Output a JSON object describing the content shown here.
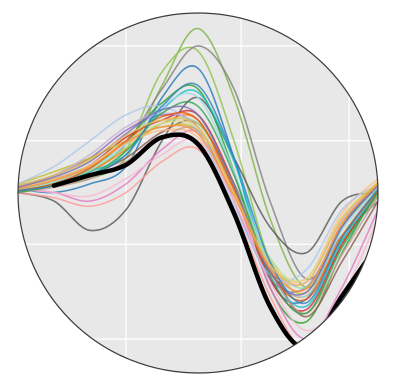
{
  "chart_data": {
    "type": "line",
    "style": {
      "background": "#e8e8e8",
      "grid_color": "#ffffff",
      "rim_color": "#3a3a3a",
      "mean_color": "#000000"
    },
    "grid": true,
    "legend": "none",
    "xlim": [
      0,
      1
    ],
    "ylim": [
      -1,
      1
    ],
    "x": [
      0.0,
      0.1,
      0.2,
      0.3,
      0.4,
      0.5,
      0.6,
      0.7,
      0.8,
      0.9,
      1.0
    ],
    "series": [
      {
        "color": "#7cb342",
        "values": [
          0.03,
          0.05,
          0.08,
          0.2,
          0.62,
          0.95,
          0.55,
          -0.15,
          -0.55,
          -0.28,
          -0.02
        ]
      },
      {
        "color": "#8bc34a",
        "values": [
          0.0,
          0.04,
          0.1,
          0.25,
          0.7,
          0.82,
          0.3,
          -0.4,
          -0.7,
          -0.3,
          0.0
        ]
      },
      {
        "color": "#7f7f7f",
        "values": [
          0.02,
          0.06,
          0.12,
          0.28,
          0.6,
          0.85,
          0.6,
          -0.05,
          -0.5,
          -0.25,
          -0.05
        ]
      },
      {
        "color": "#555555",
        "values": [
          0.0,
          -0.05,
          -0.22,
          -0.1,
          0.3,
          0.55,
          0.2,
          -0.2,
          -0.35,
          -0.05,
          0.0
        ]
      },
      {
        "color": "#1f77b4",
        "values": [
          0.02,
          0.0,
          0.05,
          0.15,
          0.55,
          0.72,
          0.2,
          -0.5,
          -0.62,
          -0.2,
          0.05
        ]
      },
      {
        "color": "#2ca02c",
        "values": [
          0.01,
          0.06,
          0.14,
          0.3,
          0.52,
          0.6,
          0.12,
          -0.55,
          -0.75,
          -0.35,
          0.02
        ]
      },
      {
        "color": "#d62728",
        "values": [
          0.03,
          0.08,
          0.16,
          0.32,
          0.42,
          0.45,
          0.05,
          -0.5,
          -0.68,
          -0.3,
          0.0
        ]
      },
      {
        "color": "#ff7f0e",
        "values": [
          0.02,
          0.05,
          0.12,
          0.25,
          0.4,
          0.42,
          0.0,
          -0.45,
          -0.6,
          -0.25,
          0.02
        ]
      },
      {
        "color": "#9467bd",
        "values": [
          0.04,
          0.1,
          0.2,
          0.36,
          0.45,
          0.38,
          -0.05,
          -0.5,
          -0.55,
          -0.2,
          0.04
        ]
      },
      {
        "color": "#8c564b",
        "values": [
          0.0,
          0.04,
          0.1,
          0.2,
          0.35,
          0.4,
          0.05,
          -0.42,
          -0.72,
          -0.4,
          -0.05
        ]
      },
      {
        "color": "#e377c2",
        "values": [
          0.02,
          0.0,
          -0.05,
          0.05,
          0.25,
          0.35,
          0.0,
          -0.55,
          -0.85,
          -0.55,
          -0.1
        ]
      },
      {
        "color": "#bcbd22",
        "values": [
          0.05,
          0.12,
          0.2,
          0.3,
          0.38,
          0.36,
          0.02,
          -0.4,
          -0.58,
          -0.18,
          0.06
        ]
      },
      {
        "color": "#17becf",
        "values": [
          0.0,
          0.05,
          0.12,
          0.22,
          0.48,
          0.58,
          0.18,
          -0.45,
          -0.66,
          -0.28,
          0.0
        ]
      },
      {
        "color": "#ffbb78",
        "values": [
          0.03,
          0.07,
          0.15,
          0.28,
          0.36,
          0.32,
          -0.02,
          -0.42,
          -0.5,
          -0.12,
          0.08
        ]
      },
      {
        "color": "#ff9896",
        "values": [
          0.0,
          -0.03,
          -0.08,
          0.0,
          0.18,
          0.25,
          -0.1,
          -0.6,
          -0.92,
          -0.7,
          -0.2
        ]
      },
      {
        "color": "#f7b6d2",
        "values": [
          0.02,
          0.0,
          -0.02,
          0.08,
          0.22,
          0.3,
          -0.05,
          -0.52,
          -0.8,
          -0.6,
          -0.15
        ]
      },
      {
        "color": "#aec7e8",
        "values": [
          0.05,
          0.15,
          0.3,
          0.45,
          0.5,
          0.35,
          -0.08,
          -0.48,
          -0.45,
          -0.1,
          0.05
        ]
      },
      {
        "color": "#98df8a",
        "values": [
          0.01,
          0.06,
          0.13,
          0.26,
          0.4,
          0.4,
          0.04,
          -0.38,
          -0.55,
          -0.2,
          0.03
        ]
      },
      {
        "color": "#c5b0d5",
        "values": [
          0.04,
          0.1,
          0.22,
          0.38,
          0.46,
          0.38,
          0.0,
          -0.44,
          -0.52,
          -0.16,
          0.04
        ]
      },
      {
        "color": "#c49c94",
        "values": [
          0.0,
          0.03,
          0.08,
          0.18,
          0.32,
          0.36,
          0.02,
          -0.45,
          -0.7,
          -0.36,
          -0.02
        ]
      },
      {
        "color": "#dbdb8d",
        "values": [
          0.03,
          0.08,
          0.16,
          0.3,
          0.4,
          0.37,
          0.0,
          -0.4,
          -0.5,
          -0.14,
          0.06
        ]
      },
      {
        "color": "#9edae5",
        "values": [
          0.02,
          0.06,
          0.14,
          0.28,
          0.5,
          0.55,
          0.12,
          -0.42,
          -0.6,
          -0.22,
          0.02
        ]
      },
      {
        "color": "#e6550d",
        "values": [
          0.01,
          0.05,
          0.14,
          0.3,
          0.44,
          0.42,
          0.02,
          -0.46,
          -0.62,
          -0.26,
          0.01
        ]
      },
      {
        "color": "#31a354",
        "values": [
          0.0,
          0.04,
          0.1,
          0.24,
          0.46,
          0.5,
          0.1,
          -0.48,
          -0.7,
          -0.32,
          0.0
        ]
      },
      {
        "color": "#756bb1",
        "values": [
          0.03,
          0.09,
          0.18,
          0.34,
          0.48,
          0.45,
          0.04,
          -0.46,
          -0.58,
          -0.2,
          0.04
        ]
      },
      {
        "color": "#fd8d3c",
        "values": [
          0.02,
          0.07,
          0.15,
          0.29,
          0.38,
          0.34,
          -0.02,
          -0.44,
          -0.56,
          -0.18,
          0.05
        ]
      },
      {
        "color": "#3182bd",
        "values": [
          0.01,
          0.04,
          0.1,
          0.22,
          0.5,
          0.62,
          0.2,
          -0.4,
          -0.64,
          -0.26,
          0.02
        ]
      },
      {
        "color": "#e7ba52",
        "values": [
          0.04,
          0.1,
          0.19,
          0.33,
          0.42,
          0.38,
          0.0,
          -0.42,
          -0.52,
          -0.15,
          0.06
        ]
      },
      {
        "color": "#000000",
        "role": "mean",
        "values": [
          null,
          0.04,
          0.1,
          0.16,
          0.32,
          0.28,
          -0.12,
          -0.66,
          -0.9,
          -0.6,
          -0.3
        ]
      }
    ]
  }
}
